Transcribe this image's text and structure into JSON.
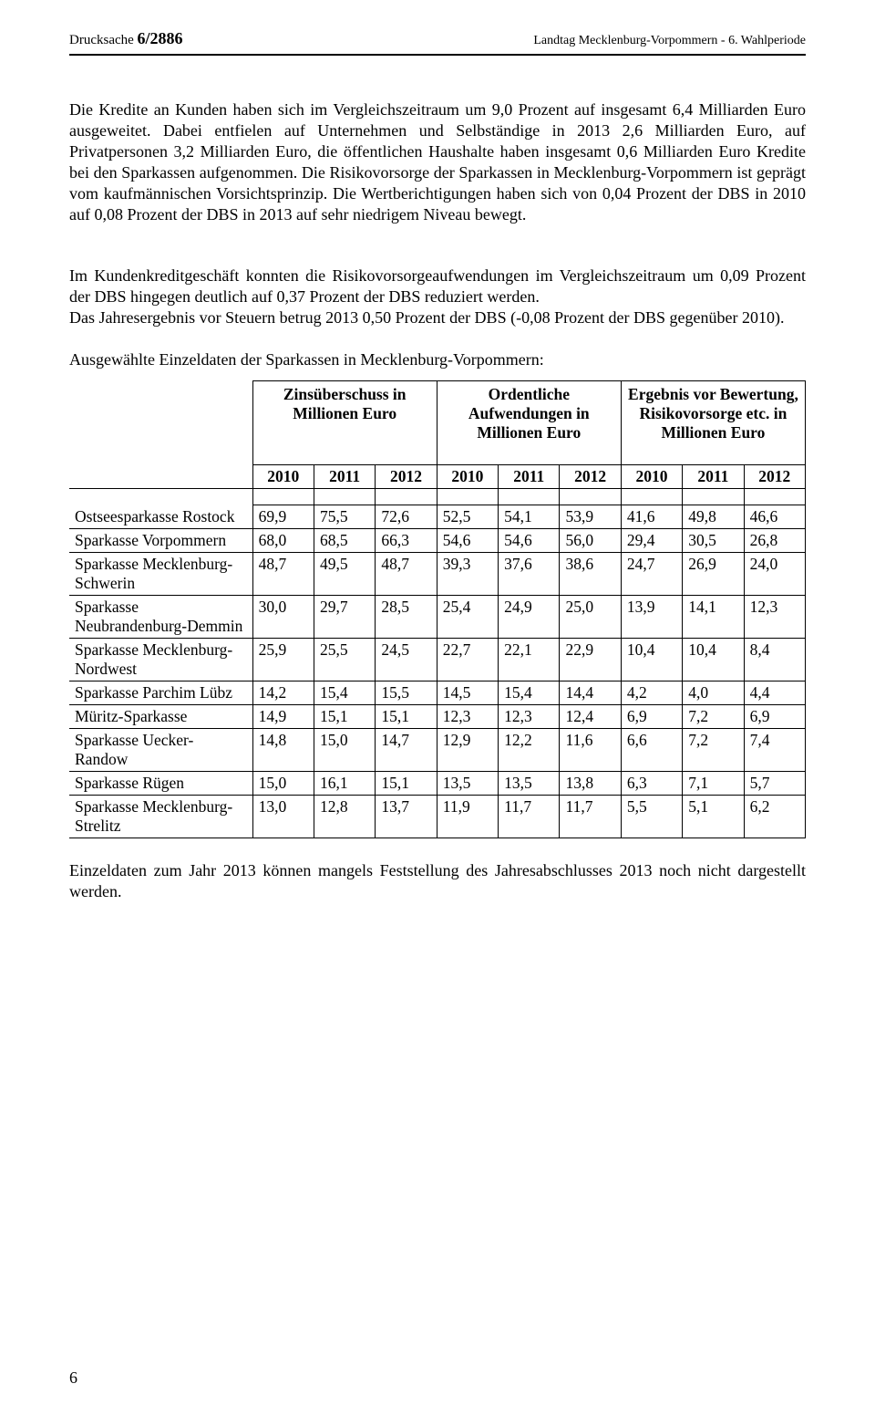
{
  "header": {
    "left_prefix": "Drucksache ",
    "doc_number": "6/2886",
    "right": "Landtag Mecklenburg-Vorpommern - 6. Wahlperiode"
  },
  "paragraphs": {
    "p1": "Die Kredite an Kunden haben sich im Vergleichszeitraum um 9,0 Prozent auf insgesamt 6,4 Milliarden Euro ausgeweitet. Dabei entfielen auf Unternehmen und Selbständige in 2013 2,6 Milliarden Euro, auf Privatpersonen 3,2 Milliarden Euro, die öffentlichen Haushalte haben insgesamt 0,6 Milliarden Euro Kredite bei den Sparkassen aufgenommen. Die Risikovorsorge der Sparkassen in Mecklenburg-Vorpommern ist geprägt vom kaufmänni­schen Vorsichtsprinzip. Die Wertberichtigungen haben sich von 0,04 Prozent der DBS in 2010 auf 0,08 Prozent der DBS in 2013 auf sehr niedrigem Niveau bewegt.",
    "p2": "Im Kundenkreditgeschäft konnten die Risikovorsorgeaufwendungen im Vergleichszeitraum um 0,09 Prozent der DBS hingegen deutlich auf 0,37 Prozent der DBS reduziert werden.",
    "p3": "Das Jahresergebnis vor Steuern betrug 2013 0,50 Prozent der DBS (-0,08 Prozent der DBS gegenüber 2010).",
    "sub": "Ausgewählte Einzeldaten der Sparkassen in Mecklenburg-Vorpommern:",
    "footer": "Einzeldaten zum Jahr 2013 können mangels Feststellung des Jahresabschlusses 2013 noch nicht dargestellt werden."
  },
  "table": {
    "group_headers": [
      "Zinsüberschuss in Millionen Euro",
      "Ordentliche Aufwendungen in Millionen Euro",
      "Ergebnis vor Bewertung, Risikovorsorge etc. in Millionen Euro"
    ],
    "years": [
      "2010",
      "2011",
      "2012",
      "2010",
      "2011",
      "2012",
      "2010",
      "2011",
      "2012"
    ],
    "rows": [
      {
        "label": "Ostseesparkasse Rostock",
        "v": [
          "69,9",
          "75,5",
          "72,6",
          "52,5",
          "54,1",
          "53,9",
          "41,6",
          "49,8",
          "46,6"
        ]
      },
      {
        "label": "Sparkasse Vorpommern",
        "v": [
          "68,0",
          "68,5",
          "66,3",
          "54,6",
          "54,6",
          "56,0",
          "29,4",
          "30,5",
          "26,8"
        ]
      },
      {
        "label": "Sparkasse Mecklenburg-Schwerin",
        "v": [
          "48,7",
          "49,5",
          "48,7",
          "39,3",
          "37,6",
          "38,6",
          "24,7",
          "26,9",
          "24,0"
        ]
      },
      {
        "label": "Sparkasse Neubrandenburg-Demmin",
        "v": [
          "30,0",
          "29,7",
          "28,5",
          "25,4",
          "24,9",
          "25,0",
          "13,9",
          "14,1",
          "12,3"
        ]
      },
      {
        "label": "Sparkasse Mecklenburg-Nordwest",
        "v": [
          "25,9",
          "25,5",
          "24,5",
          "22,7",
          "22,1",
          "22,9",
          "10,4",
          "10,4",
          "8,4"
        ]
      },
      {
        "label": "Sparkasse Parchim Lübz",
        "v": [
          "14,2",
          "15,4",
          "15,5",
          "14,5",
          "15,4",
          "14,4",
          "4,2",
          "4,0",
          "4,4"
        ]
      },
      {
        "label": "Müritz-Sparkasse",
        "v": [
          "14,9",
          "15,1",
          "15,1",
          "12,3",
          "12,3",
          "12,4",
          "6,9",
          "7,2",
          "6,9"
        ]
      },
      {
        "label": "Sparkasse Uecker-Randow",
        "v": [
          "14,8",
          "15,0",
          "14,7",
          "12,9",
          "12,2",
          "11,6",
          "6,6",
          "7,2",
          "7,4"
        ]
      },
      {
        "label": "Sparkasse Rügen",
        "v": [
          "15,0",
          "16,1",
          "15,1",
          "13,5",
          "13,5",
          "13,8",
          "6,3",
          "7,1",
          "5,7"
        ]
      },
      {
        "label": "Sparkasse Mecklenburg-Strelitz",
        "v": [
          "13,0",
          "12,8",
          "13,7",
          "11,9",
          "11,7",
          "11,7",
          "5,5",
          "5,1",
          "6,2"
        ]
      }
    ]
  },
  "page_number": "6"
}
